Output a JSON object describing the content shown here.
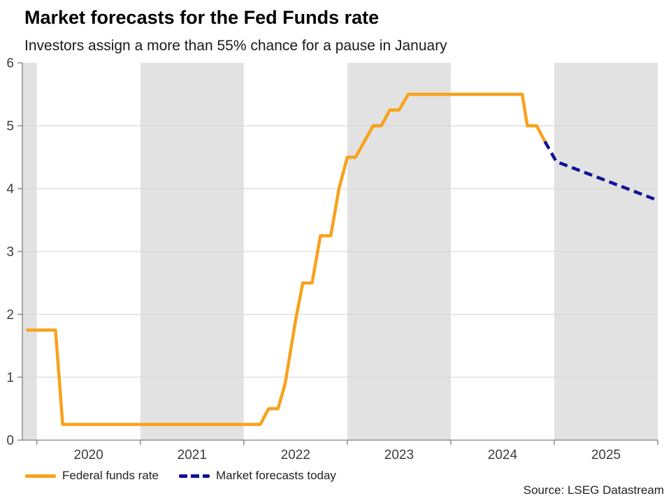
{
  "header": {
    "title": "Market forecasts for the Fed Funds rate",
    "subtitle": "Investors assign a more than 55% chance for a pause in January"
  },
  "source": "Source: LSEG Datastream",
  "legend": [
    {
      "label": "Federal funds rate",
      "color": "#F9A11B",
      "style": "solid"
    },
    {
      "label": "Market forecasts today",
      "color": "#101195",
      "style": "dashed"
    }
  ],
  "chart_data": {
    "type": "line",
    "title": "Market forecasts for the Fed Funds rate",
    "subtitle": "Investors assign a more than 55% chance for a pause in January",
    "xlabel": "",
    "ylabel": "",
    "x_domain": [
      2019.86,
      2026.0
    ],
    "y_domain": [
      0,
      6
    ],
    "grid": "horizontal",
    "legend_position": "bottom-left",
    "y_ticks": [
      0,
      1,
      2,
      3,
      4,
      5,
      6
    ],
    "x_tick_years": [
      2020,
      2021,
      2022,
      2023,
      2024,
      2025,
      2026
    ],
    "x_labels": [
      {
        "year": 2020.5,
        "label": "2020"
      },
      {
        "year": 2021.5,
        "label": "2021"
      },
      {
        "year": 2022.5,
        "label": "2022"
      },
      {
        "year": 2023.5,
        "label": "2023"
      },
      {
        "year": 2024.5,
        "label": "2024"
      },
      {
        "year": 2025.5,
        "label": "2025"
      }
    ],
    "shaded_year_bands": [
      [
        2019.86,
        2020.0
      ],
      [
        2021.0,
        2022.0
      ],
      [
        2023.0,
        2024.0
      ],
      [
        2025.0,
        2026.0
      ]
    ],
    "colors": {
      "band": "#e2e2e2",
      "grid": "#d9d9d9",
      "axis": "#7f7f7f",
      "tick_text": "#3d3d3d"
    },
    "series": [
      {
        "name": "Federal funds rate",
        "color": "#F9A11B",
        "dash": null,
        "points": [
          [
            2019.91,
            1.75
          ],
          [
            2020.18,
            1.75
          ],
          [
            2020.25,
            0.25
          ],
          [
            2022.16,
            0.25
          ],
          [
            2022.24,
            0.5
          ],
          [
            2022.33,
            0.5
          ],
          [
            2022.4,
            0.9
          ],
          [
            2022.5,
            1.9
          ],
          [
            2022.57,
            2.5
          ],
          [
            2022.66,
            2.5
          ],
          [
            2022.74,
            3.25
          ],
          [
            2022.84,
            3.25
          ],
          [
            2022.92,
            4.0
          ],
          [
            2023.0,
            4.5
          ],
          [
            2023.08,
            4.5
          ],
          [
            2023.25,
            5.0
          ],
          [
            2023.33,
            5.0
          ],
          [
            2023.41,
            5.25
          ],
          [
            2023.5,
            5.25
          ],
          [
            2023.59,
            5.5
          ],
          [
            2024.69,
            5.5
          ],
          [
            2024.74,
            5.0
          ],
          [
            2024.83,
            5.0
          ],
          [
            2024.91,
            4.75
          ]
        ]
      },
      {
        "name": "Market forecasts today",
        "color": "#101195",
        "dash": [
          12,
          7
        ],
        "points": [
          [
            2024.91,
            4.75
          ],
          [
            2025.02,
            4.43
          ],
          [
            2025.99,
            3.82
          ]
        ]
      }
    ]
  }
}
